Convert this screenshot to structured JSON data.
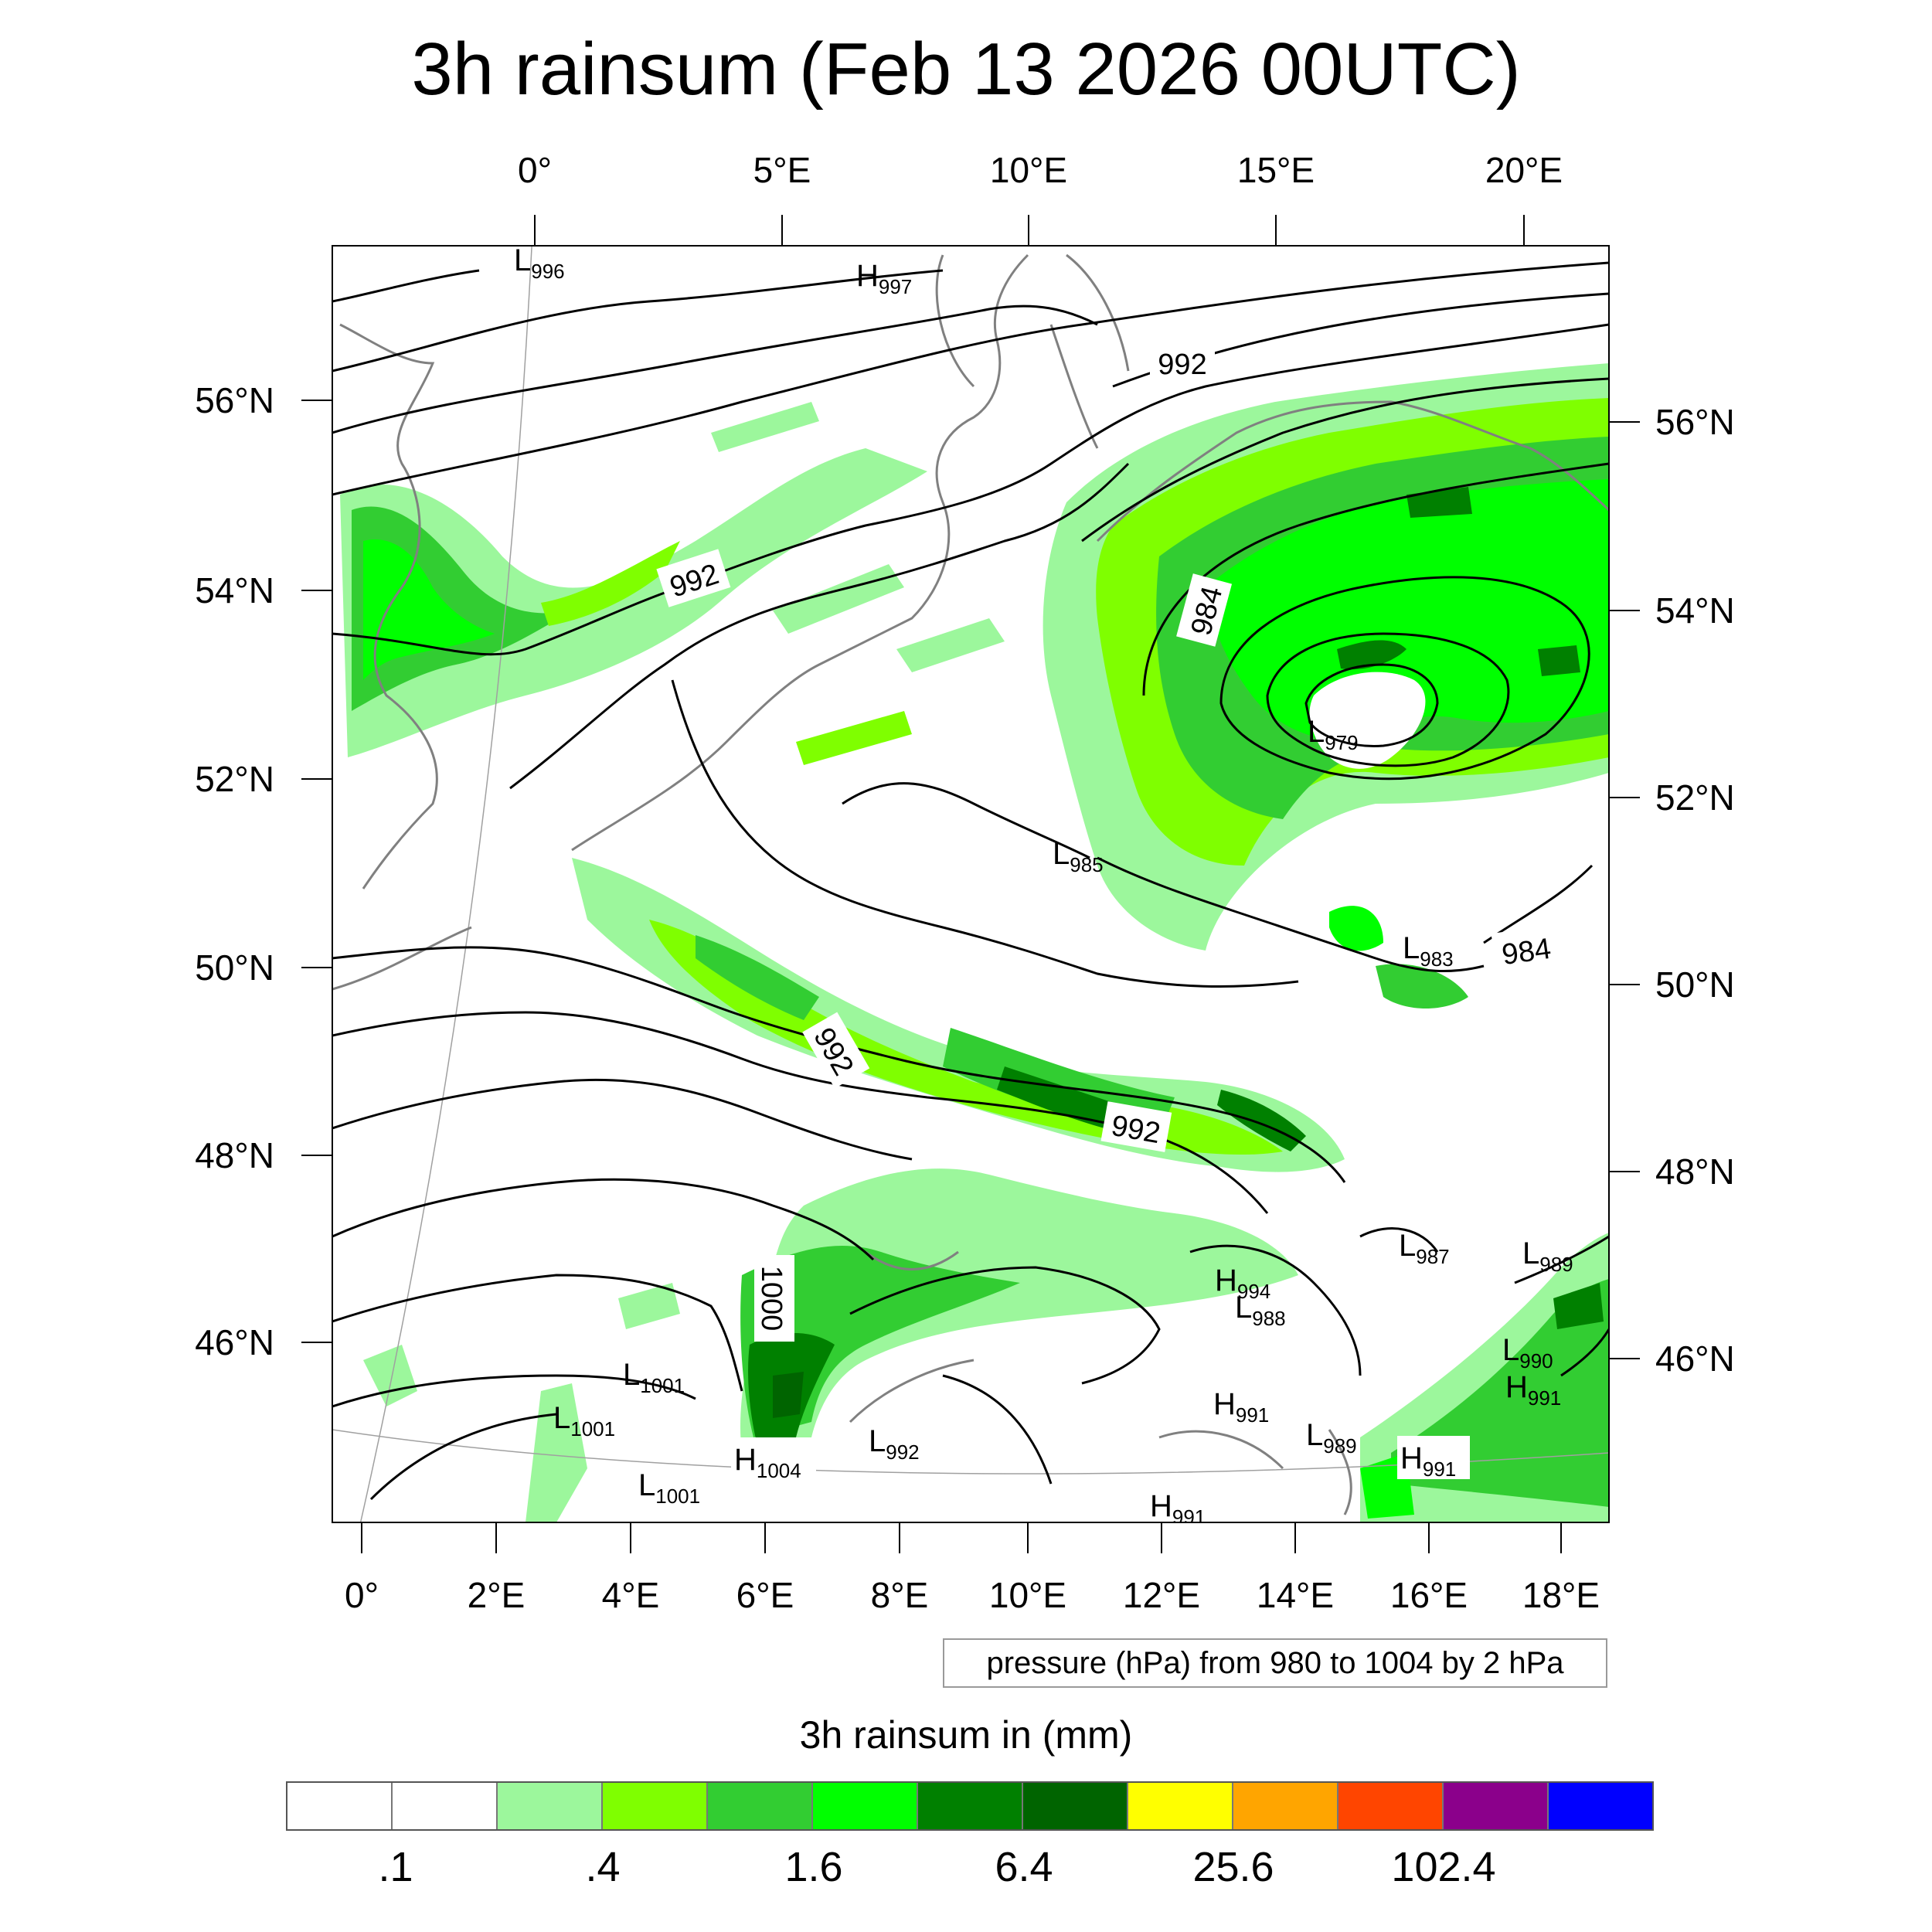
{
  "title": "3h rainsum (Feb 13 2026 00UTC)",
  "map": {
    "top_axis_labels": [
      "0°",
      "5°E",
      "10°E",
      "15°E",
      "20°E"
    ],
    "bottom_axis_labels": [
      "0°",
      "2°E",
      "4°E",
      "6°E",
      "8°E",
      "10°E",
      "12°E",
      "14°E",
      "16°E",
      "18°E"
    ],
    "left_axis_labels": [
      "56°N",
      "54°N",
      "52°N",
      "50°N",
      "48°N",
      "46°N"
    ],
    "right_axis_labels": [
      "56°N",
      "54°N",
      "52°N",
      "50°N",
      "48°N",
      "46°N"
    ],
    "contour_labels": [
      "992",
      "992",
      "984",
      "992",
      "992",
      "1000",
      "984"
    ],
    "pressure_centers": [
      {
        "type": "L",
        "value": "996"
      },
      {
        "type": "H",
        "value": "997"
      },
      {
        "type": "L",
        "value": "979"
      },
      {
        "type": "L",
        "value": "985"
      },
      {
        "type": "L",
        "value": "983"
      },
      {
        "type": "L",
        "value": "987"
      },
      {
        "type": "L",
        "value": "989"
      },
      {
        "type": "H",
        "value": "994"
      },
      {
        "type": "L",
        "value": "988"
      },
      {
        "type": "L",
        "value": "990"
      },
      {
        "type": "H",
        "value": "991"
      },
      {
        "type": "L",
        "value": "1001"
      },
      {
        "type": "L",
        "value": "1001"
      },
      {
        "type": "L",
        "value": "1001"
      },
      {
        "type": "H",
        "value": "1004"
      },
      {
        "type": "L",
        "value": "992"
      },
      {
        "type": "H",
        "value": "991"
      },
      {
        "type": "L",
        "value": "989"
      },
      {
        "type": "H",
        "value": "991"
      },
      {
        "type": "H",
        "value": "991"
      }
    ],
    "rain_colors": {
      "light": "#9cf79c",
      "lime": "#7fff00",
      "mid": "#32cd32",
      "bright": "#00ff00",
      "dark": "#008000",
      "darkest": "#006400"
    },
    "coastline_color": "#808080",
    "contour_color": "#000000"
  },
  "info_box": "pressure (hPa) from 980 to 1004 by 2 hPa",
  "colorbar": {
    "title": "3h rainsum in (mm)",
    "colors": [
      "#ffffff",
      "#ffffff",
      "#9cf79c",
      "#7fff00",
      "#32cd32",
      "#00ff00",
      "#008000",
      "#006400",
      "#ffff00",
      "#ffa500",
      "#ff4500",
      "#8b008b",
      "#0000ff"
    ],
    "labels": [
      ".1",
      ".4",
      "1.6",
      "6.4",
      "25.6",
      "102.4"
    ]
  }
}
